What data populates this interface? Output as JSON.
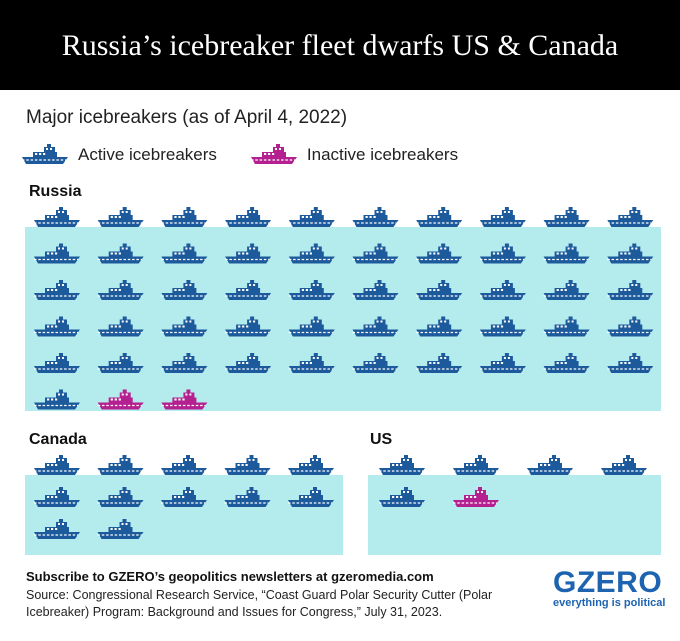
{
  "header": {
    "title": "Russia’s icebreaker fleet dwarfs US & Canada"
  },
  "subtitle": "Major icebreakers (as of April 4, 2022)",
  "legend": {
    "active": "Active icebreakers",
    "inactive": "Inactive icebreakers"
  },
  "colors": {
    "active": "#1d5a9c",
    "inactive": "#b4208f",
    "water": "#b4ecee",
    "title_bg": "#000000"
  },
  "chart_data": {
    "type": "pictogram",
    "unit": "icebreaker",
    "categories": [
      "Russia",
      "Canada",
      "US"
    ],
    "series": [
      {
        "name": "Active icebreakers",
        "values": [
          51,
          12,
          5
        ]
      },
      {
        "name": "Inactive icebreakers",
        "values": [
          2,
          0,
          1
        ]
      }
    ]
  },
  "footer": {
    "cta": "Subscribe to GZERO’s geopolitics newsletters at gzeromedia.com",
    "source": "Source: Congressional Research Service, “Coast Guard Polar Security Cutter (Polar Icebreaker) Program: Background and Issues for Congress,” July 31, 2023."
  },
  "logo": {
    "text": "GZERO",
    "tagline": "everything is political"
  }
}
